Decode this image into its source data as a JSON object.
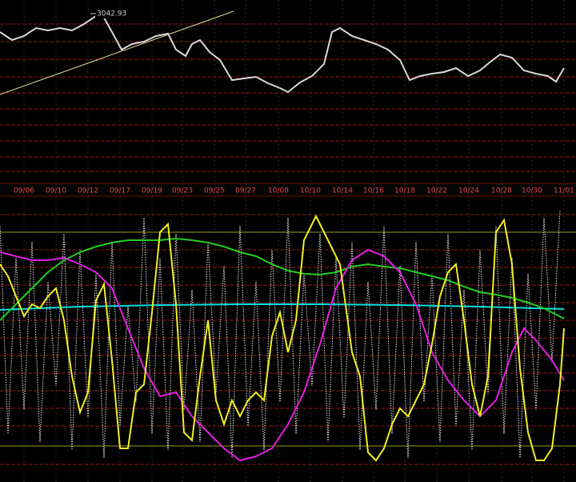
{
  "chart_data": [
    {
      "type": "line",
      "annotation": "3042.93",
      "xlim": [
        0,
        720
      ],
      "ylim": [
        0,
        230
      ],
      "xticks": [
        {
          "value": 30,
          "label": "09/06"
        },
        {
          "value": 70,
          "label": "09/10"
        },
        {
          "value": 110,
          "label": "09/12"
        },
        {
          "value": 150,
          "label": "09/17"
        },
        {
          "value": 190,
          "label": "09/19"
        },
        {
          "value": 228,
          "label": "09/23"
        },
        {
          "value": 268,
          "label": "09/25"
        },
        {
          "value": 307,
          "label": "09/27"
        },
        {
          "value": 348,
          "label": "10/08"
        },
        {
          "value": 388,
          "label": "10/10"
        },
        {
          "value": 428,
          "label": "10/14"
        },
        {
          "value": 467,
          "label": "10/16"
        },
        {
          "value": 506,
          "label": "10/18"
        },
        {
          "value": 546,
          "label": "10/22"
        },
        {
          "value": 586,
          "label": "10/24"
        },
        {
          "value": 627,
          "label": "10/28"
        },
        {
          "value": 665,
          "label": "10/30"
        },
        {
          "value": 705,
          "label": "11/01"
        }
      ],
      "series": [
        {
          "color": "#d8d8d8",
          "x": [
            0,
            15,
            30,
            45,
            60,
            75,
            90,
            105,
            120,
            130,
            140,
            152,
            165,
            180,
            195,
            210,
            220,
            232,
            240,
            250,
            262,
            275,
            290,
            305,
            320,
            335,
            350,
            360,
            375,
            390,
            405,
            415,
            425,
            440,
            455,
            470,
            485,
            500,
            512,
            525,
            540,
            555,
            570,
            585,
            600,
            612,
            625,
            640,
            655,
            670,
            685,
            695,
            705
          ],
          "values": [
            190,
            180,
            185,
            195,
            192,
            195,
            192,
            200,
            210,
            208,
            190,
            168,
            175,
            178,
            185,
            188,
            168,
            160,
            175,
            180,
            165,
            155,
            130,
            132,
            134,
            126,
            120,
            115,
            127,
            135,
            150,
            190,
            195,
            185,
            180,
            175,
            168,
            155,
            130,
            135,
            138,
            140,
            145,
            135,
            142,
            152,
            162,
            158,
            142,
            138,
            135,
            128,
            145
          ]
        }
      ]
    },
    {
      "type": "line",
      "xlim": [
        0,
        720
      ],
      "ylim": [
        0,
        357
      ],
      "series": [
        {
          "color": "#e8e8e8",
          "dashed": true,
          "x": [
            0,
            10,
            20,
            30,
            40,
            50,
            60,
            70,
            80,
            90,
            100,
            110,
            120,
            130,
            140,
            150,
            160,
            170,
            180,
            190,
            200,
            210,
            220,
            230,
            240,
            250,
            260,
            270,
            280,
            290,
            300,
            310,
            320,
            330,
            340,
            350,
            360,
            370,
            380,
            390,
            400,
            410,
            420,
            430,
            440,
            450,
            460,
            470,
            480,
            490,
            500,
            510,
            520,
            530,
            540,
            550,
            560,
            570,
            580,
            590,
            600,
            610,
            620,
            630,
            640,
            650,
            660,
            670,
            680,
            690,
            700
          ],
          "values": [
            320,
            60,
            280,
            90,
            300,
            50,
            250,
            120,
            310,
            40,
            290,
            80,
            260,
            30,
            300,
            70,
            220,
            100,
            330,
            60,
            280,
            40,
            310,
            90,
            240,
            50,
            300,
            110,
            270,
            30,
            320,
            70,
            250,
            40,
            290,
            100,
            330,
            60,
            260,
            120,
            310,
            50,
            280,
            80,
            300,
            40,
            250,
            90,
            320,
            60,
            270,
            30,
            300,
            100,
            260,
            50,
            310,
            70,
            240,
            40,
            290,
            110,
            320,
            60,
            280,
            30,
            260,
            90,
            330,
            150,
            340
          ]
        },
        {
          "color": "#00e0e0",
          "x": [
            0,
            100,
            200,
            300,
            400,
            500,
            600,
            705
          ],
          "values": [
            215,
            219,
            221,
            222,
            222,
            221,
            219,
            216
          ]
        },
        {
          "color": "#20d020",
          "x": [
            0,
            20,
            40,
            60,
            80,
            100,
            120,
            140,
            160,
            180,
            200,
            220,
            240,
            260,
            280,
            300,
            320,
            340,
            360,
            380,
            400,
            420,
            440,
            460,
            480,
            500,
            520,
            540,
            560,
            580,
            600,
            620,
            640,
            660,
            680,
            705
          ],
          "values": [
            202,
            222,
            242,
            262,
            277,
            287,
            294,
            299,
            302,
            302,
            302,
            304,
            302,
            299,
            294,
            287,
            282,
            272,
            264,
            260,
            259,
            262,
            269,
            272,
            269,
            267,
            262,
            257,
            252,
            244,
            237,
            234,
            230,
            224,
            217,
            204
          ]
        },
        {
          "color": "#e020e0",
          "x": [
            0,
            20,
            40,
            60,
            80,
            100,
            120,
            140,
            160,
            180,
            200,
            220,
            240,
            260,
            280,
            300,
            320,
            340,
            360,
            380,
            400,
            420,
            440,
            460,
            480,
            500,
            520,
            540,
            560,
            580,
            600,
            620,
            640,
            655,
            670,
            690,
            705
          ],
          "values": [
            287,
            282,
            277,
            277,
            280,
            272,
            262,
            242,
            192,
            142,
            107,
            112,
            82,
            62,
            42,
            27,
            32,
            42,
            72,
            112,
            172,
            242,
            277,
            290,
            282,
            262,
            222,
            162,
            127,
            102,
            82,
            102,
            162,
            192,
            177,
            152,
            127
          ]
        },
        {
          "color": "#f0f020",
          "x": [
            0,
            10,
            20,
            30,
            40,
            50,
            60,
            70,
            80,
            90,
            100,
            110,
            120,
            130,
            140,
            150,
            160,
            170,
            180,
            190,
            200,
            210,
            220,
            230,
            240,
            250,
            260,
            270,
            280,
            290,
            300,
            310,
            320,
            330,
            340,
            350,
            360,
            370,
            380,
            395,
            410,
            425,
            440,
            450,
            460,
            470,
            480,
            490,
            500,
            510,
            520,
            530,
            540,
            550,
            560,
            570,
            580,
            590,
            600,
            610,
            620,
            630,
            640,
            650,
            660,
            670,
            680,
            690,
            700,
            705
          ],
          "values": [
            272,
            257,
            232,
            207,
            222,
            217,
            232,
            242,
            202,
            132,
            87,
            112,
            227,
            247,
            152,
            42,
            42,
            112,
            122,
            212,
            312,
            322,
            222,
            62,
            52,
            132,
            202,
            102,
            72,
            102,
            82,
            102,
            112,
            102,
            182,
            212,
            162,
            202,
            302,
            332,
            302,
            272,
            162,
            132,
            37,
            27,
            42,
            72,
            92,
            82,
            102,
            122,
            172,
            232,
            262,
            272,
            202,
            122,
            82,
            132,
            312,
            327,
            272,
            142,
            62,
            27,
            27,
            42,
            122,
            192
          ]
        }
      ]
    }
  ]
}
